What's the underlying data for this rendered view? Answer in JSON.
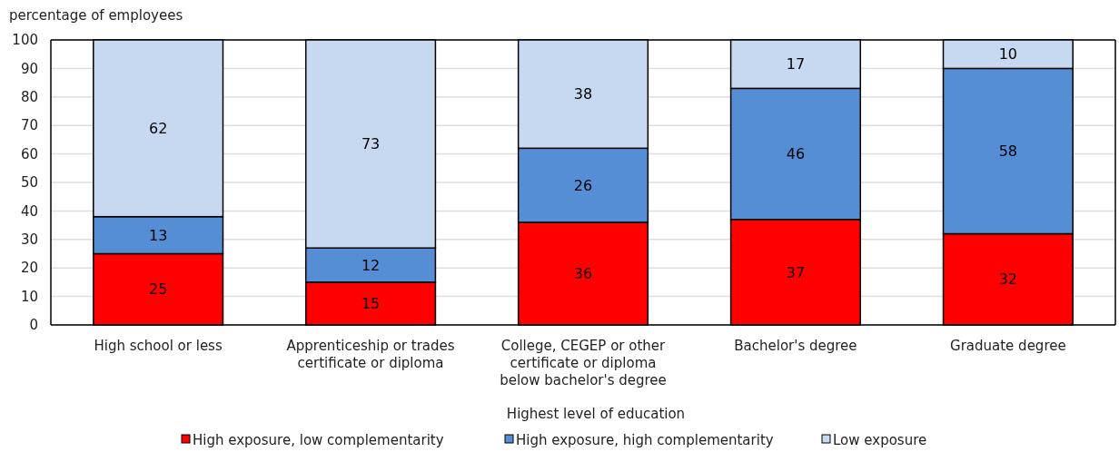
{
  "chart_data": {
    "type": "bar",
    "stacked": true,
    "ylabel": "percentage of employees",
    "xlabel": "Highest level of education",
    "categories": [
      "High school or less",
      "Apprenticeship or trades certificate or diploma",
      "College, CEGEP or other certificate or diploma below bachelor's degree",
      "Bachelor's degree",
      "Graduate degree"
    ],
    "series": [
      {
        "name": "High exposure, low complementarity",
        "color": "#ff0000",
        "values": [
          25,
          15,
          36,
          37,
          32
        ]
      },
      {
        "name": "High exposure, high complementarity",
        "color": "#558ed5",
        "values": [
          13,
          12,
          26,
          46,
          58
        ]
      },
      {
        "name": "Low exposure",
        "color": "#c6d9f1",
        "values": [
          62,
          73,
          38,
          17,
          10
        ]
      }
    ],
    "ylim": [
      0,
      100
    ],
    "yticks": [
      0,
      10,
      20,
      30,
      40,
      50,
      60,
      70,
      80,
      90,
      100
    ],
    "grid": "y",
    "legend": "bottom",
    "data_labels": true
  }
}
